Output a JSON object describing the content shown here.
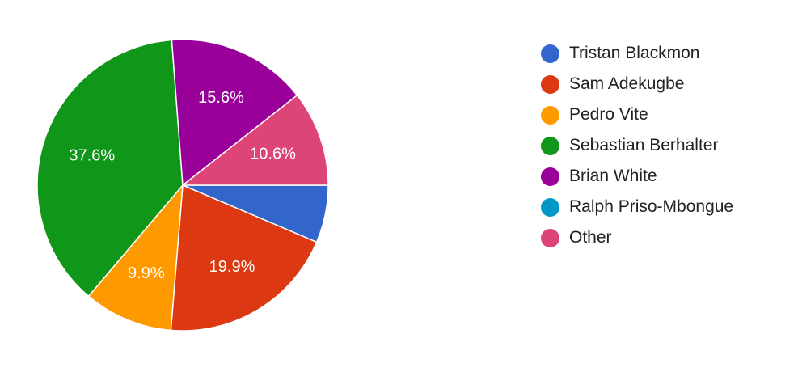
{
  "chart_data": {
    "type": "pie",
    "title": "",
    "legend_position": "right",
    "start_angle_deg": 90,
    "direction": "clockwise",
    "slices": [
      {
        "label": "Tristan Blackmon",
        "value": 6.4,
        "value_label": "",
        "color": "#3366cc"
      },
      {
        "label": "Sam Adekugbe",
        "value": 19.9,
        "value_label": "19.9%",
        "color": "#dc3912"
      },
      {
        "label": "Pedro Vite",
        "value": 9.9,
        "value_label": "9.9%",
        "color": "#ff9900"
      },
      {
        "label": "Sebastian Berhalter",
        "value": 37.6,
        "value_label": "37.6%",
        "color": "#109618"
      },
      {
        "label": "Brian White",
        "value": 15.6,
        "value_label": "15.6%",
        "color": "#990099"
      },
      {
        "label": "Ralph Priso-Mbongue",
        "value": 0,
        "value_label": "",
        "color": "#0099c6"
      },
      {
        "label": "Other",
        "value": 10.6,
        "value_label": "10.6%",
        "color": "#dd4477"
      }
    ]
  }
}
